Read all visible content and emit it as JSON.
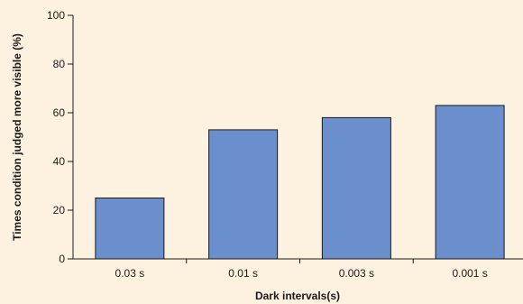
{
  "colors": {
    "background": "#fdf1e0",
    "bar_fill": "#6a8fcc",
    "bar_stroke": "#1a1a1a",
    "axis": "#1a1a1a"
  },
  "chart_data": {
    "type": "bar",
    "categories": [
      "0.03 s",
      "0.01 s",
      "0.003 s",
      "0.001 s"
    ],
    "values": [
      25,
      53,
      58,
      63
    ],
    "xlabel": "Dark intervals(s)",
    "ylabel": "Times condition judged more visible (%)",
    "ylim": [
      0,
      100
    ],
    "yticks": [
      0,
      20,
      40,
      60,
      80,
      100
    ],
    "grid": false,
    "legend": "none"
  }
}
